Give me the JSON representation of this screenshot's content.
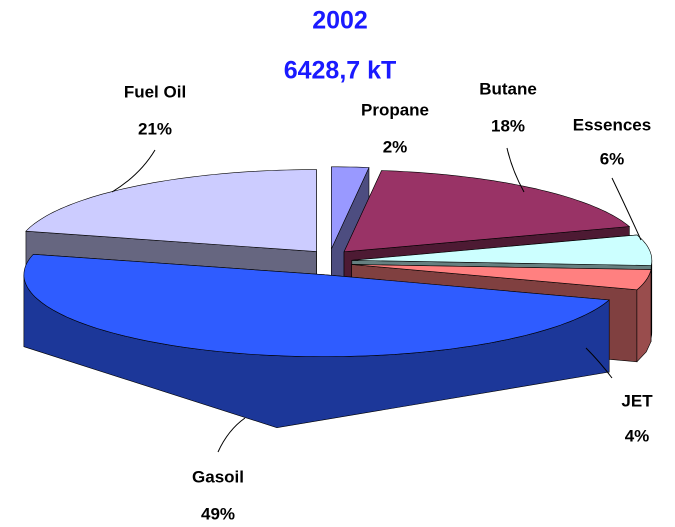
{
  "chart_data": {
    "type": "pie",
    "title": "2002",
    "subtitle": "6428,7 kT",
    "categories": [
      "Propane",
      "Butane",
      "Essences",
      "JET",
      "Gasoil",
      "Fuel Oil"
    ],
    "values": [
      2,
      18,
      6,
      4,
      49,
      21
    ],
    "value_labels": [
      "2%",
      "18%",
      "6%",
      "4%",
      "49%",
      "21%"
    ],
    "colors": [
      "#9999ff",
      "#993366",
      "#ccffff",
      "#ff8080",
      "#2f5cff",
      "#ccccff"
    ]
  }
}
